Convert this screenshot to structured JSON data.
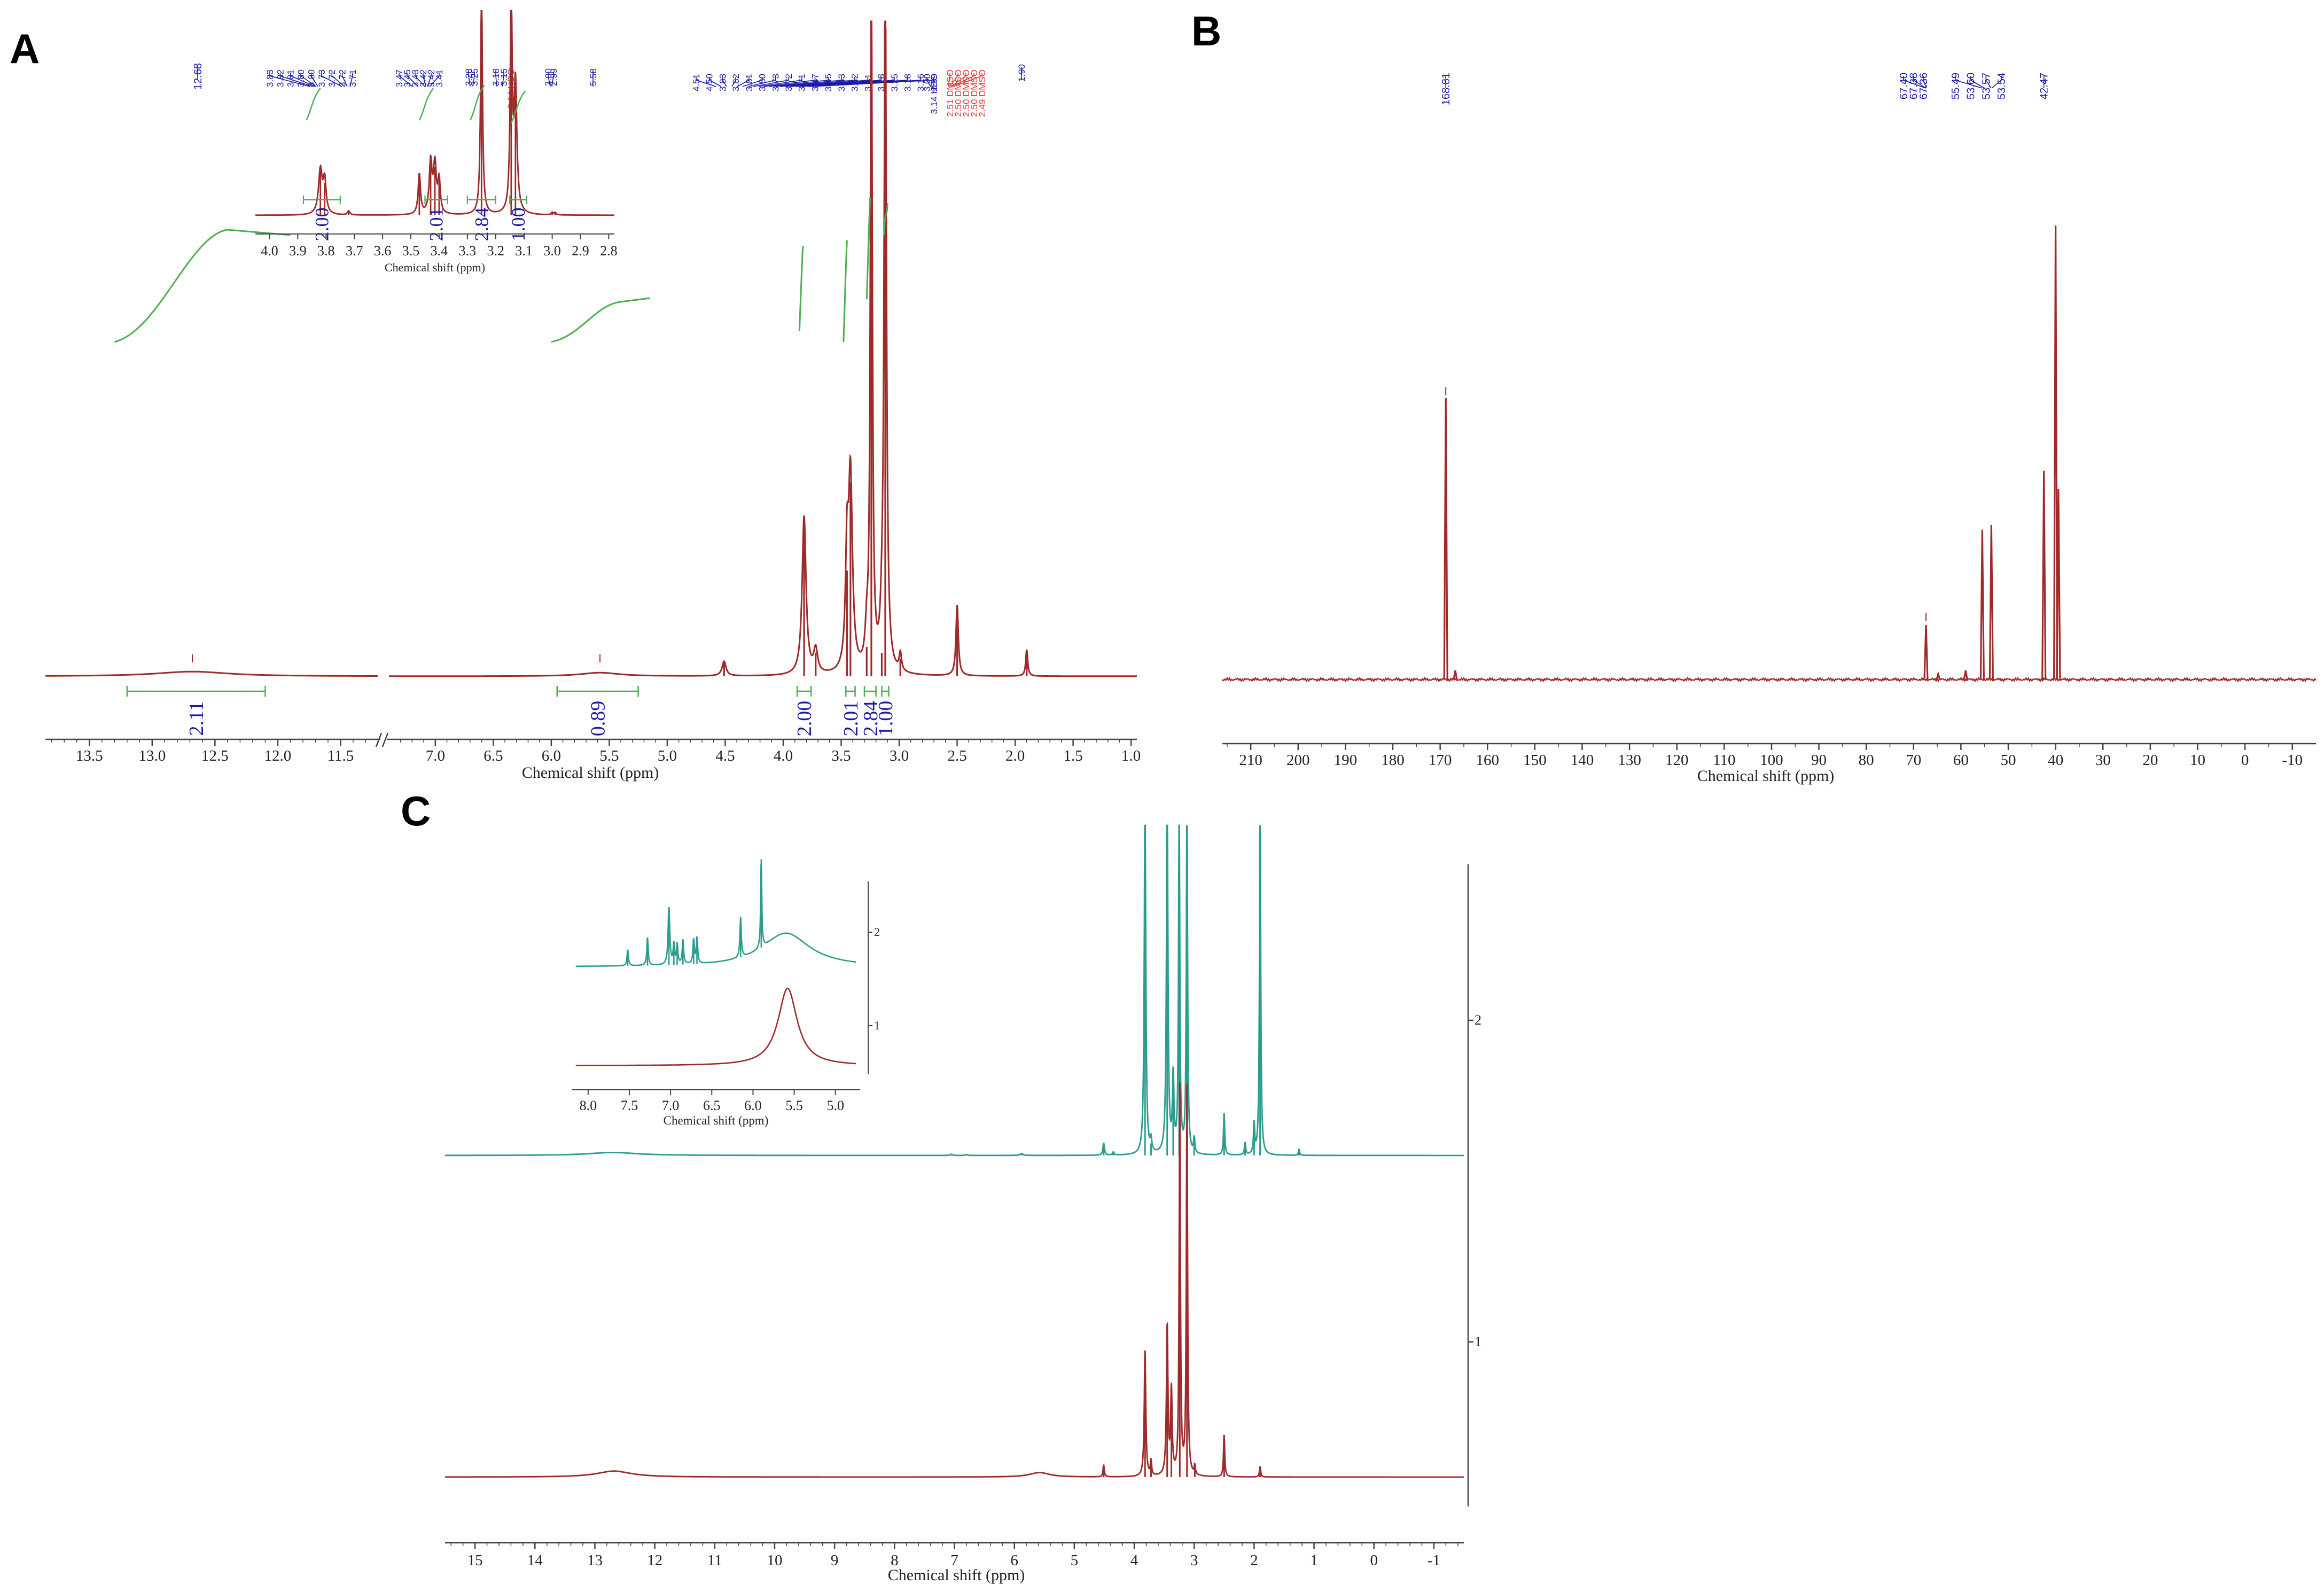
{
  "colors": {
    "spectrum_red": "#9e2a2b",
    "spectrum_teal": "#2a9d8f",
    "integral_green": "#4caf50",
    "label_blue": "#1a1aa6",
    "label_red": "#e53935",
    "axis": "#444444"
  },
  "panels": {
    "A": {
      "letter": "A"
    },
    "B": {
      "letter": "B"
    },
    "C": {
      "letter": "C"
    }
  },
  "chart_data": [
    {
      "panel": "A",
      "type": "line",
      "xlabel": "Chemical shift (ppm)",
      "x_reversed": true,
      "x_axis_break": [
        7.4,
        11.2
      ],
      "xlim": [
        14.0,
        1.0
      ],
      "x_ticks": [
        "13.5",
        "13.0",
        "12.5",
        "12.0",
        "11.5",
        "7.0",
        "6.5",
        "6.0",
        "5.5",
        "5.0",
        "4.5",
        "4.0",
        "3.5",
        "3.0",
        "2.5",
        "2.0",
        "1.5",
        "1.0"
      ],
      "peaks": [
        {
          "ppm": 12.68,
          "height": 0.008,
          "width": 0.35
        },
        {
          "ppm": 5.58,
          "height": 0.006,
          "width": 0.2
        },
        {
          "ppm": 4.51,
          "height": 0.025,
          "width": 0.02
        },
        {
          "ppm": 3.82,
          "height": 0.27,
          "width": 0.02
        },
        {
          "ppm": 3.72,
          "height": 0.04,
          "width": 0.02
        },
        {
          "ppm": 3.45,
          "height": 0.18,
          "width": 0.015
        },
        {
          "ppm": 3.42,
          "height": 0.33,
          "width": 0.02
        },
        {
          "ppm": 3.28,
          "height": 0.05,
          "width": 0.015
        },
        {
          "ppm": 3.24,
          "height": 1.2,
          "width": 0.01
        },
        {
          "ppm": 3.15,
          "height": 0.04,
          "width": 0.015
        },
        {
          "ppm": 3.12,
          "height": 1.2,
          "width": 0.012
        },
        {
          "ppm": 2.99,
          "height": 0.03,
          "width": 0.012
        },
        {
          "ppm": 2.5,
          "height": 0.12,
          "width": 0.012
        },
        {
          "ppm": 1.9,
          "height": 0.045,
          "width": 0.01
        }
      ],
      "integrals": [
        {
          "from": 13.2,
          "to": 12.1,
          "value": "2.11"
        },
        {
          "from": 5.95,
          "to": 5.25,
          "value": "0.89"
        },
        {
          "from": 3.88,
          "to": 3.76,
          "value": "2.00"
        },
        {
          "from": 3.46,
          "to": 3.38,
          "value": "2.01"
        },
        {
          "from": 3.3,
          "to": 3.2,
          "value": "2.84"
        },
        {
          "from": 3.15,
          "to": 3.09,
          "value": "1.00"
        }
      ],
      "peak_labels_blue_left": [
        "12.68"
      ],
      "peak_labels_blue_group1": [
        "3.83",
        "3.82",
        "3.81",
        "3.80",
        "3.80",
        "3.73",
        "3.72",
        "3.72",
        "3.71"
      ],
      "peak_labels_blue_group2": [
        "3.47",
        "3.45",
        "3.43",
        "3.42",
        "3.42",
        "3.41"
      ],
      "peak_labels_blue_group3": [
        "3.28",
        "3.25"
      ],
      "peak_labels_blue_group4": [
        "3.18",
        "3.15"
      ],
      "peak_labels_red_group1": [
        "3.14 HDO"
      ],
      "peak_labels_blue_group5": [
        "3.00",
        "2.99"
      ],
      "peak_labels_blue_group6": [
        "5.58"
      ],
      "peak_labels_blue_main": [
        "4.51",
        "4.50",
        "3.83",
        "3.82",
        "3.81",
        "3.80",
        "3.73",
        "3.72",
        "3.71",
        "3.47",
        "3.45",
        "3.43",
        "3.42",
        "3.41",
        "3.28",
        "3.25",
        "3.18",
        "3.16",
        "3.14 HDO"
      ],
      "peak_labels_blue_main2": [
        "3.00",
        "2.99"
      ],
      "peak_labels_red_main": [
        "2.51 DMSO",
        "2.50 DMSO",
        "2.50 DMSO",
        "2.50 DMSO",
        "2.49 DMSO"
      ],
      "peak_labels_blue_right": [
        "1.90"
      ],
      "inset": {
        "xlabel": "Chemical shift (ppm)",
        "xlim": [
          4.05,
          2.78
        ],
        "x_ticks": [
          "4.0",
          "3.9",
          "3.8",
          "3.7",
          "3.6",
          "3.5",
          "3.4",
          "3.3",
          "3.2",
          "3.1",
          "3.0",
          "2.9",
          "2.8"
        ],
        "integrals": [
          {
            "from": 3.88,
            "to": 3.75,
            "value": "2.00"
          },
          {
            "from": 3.45,
            "to": 3.37,
            "value": "2.01"
          },
          {
            "from": 3.3,
            "to": 3.2,
            "value": "2.84"
          },
          {
            "from": 3.15,
            "to": 3.09,
            "value": "1.00"
          }
        ]
      }
    },
    {
      "panel": "B",
      "type": "line",
      "xlabel": "Chemical shift (ppm)",
      "x_reversed": true,
      "xlim": [
        216,
        -15
      ],
      "x_ticks": [
        "210",
        "200",
        "190",
        "180",
        "170",
        "160",
        "150",
        "140",
        "130",
        "120",
        "110",
        "100",
        "90",
        "80",
        "70",
        "60",
        "50",
        "40",
        "30",
        "20",
        "10",
        "0",
        "-10"
      ],
      "peaks": [
        {
          "ppm": 168.81,
          "height": 0.62
        },
        {
          "ppm": 166.8,
          "height": 0.02
        },
        {
          "ppm": 67.38,
          "height": 0.12
        },
        {
          "ppm": 64.8,
          "height": 0.012
        },
        {
          "ppm": 59.0,
          "height": 0.02
        },
        {
          "ppm": 55.49,
          "height": 0.33
        },
        {
          "ppm": 53.57,
          "height": 0.34
        },
        {
          "ppm": 42.47,
          "height": 0.46
        },
        {
          "ppm": 40.0,
          "height": 1.0
        },
        {
          "ppm": 39.4,
          "height": 0.42
        }
      ],
      "peak_labels_left": [
        "168.81"
      ],
      "peak_labels_group1": [
        "67.40",
        "67.38",
        "67.36"
      ],
      "peak_labels_group2": [
        "55.49",
        "53.60",
        "53.57",
        "53.54"
      ],
      "peak_labels_right": [
        "42.47"
      ]
    },
    {
      "panel": "C",
      "type": "line",
      "xlabel": "Chemical shift (ppm)",
      "x_reversed": true,
      "xlim": [
        15.5,
        -1.5
      ],
      "x_ticks": [
        "15",
        "14",
        "13",
        "12",
        "11",
        "10",
        "9",
        "8",
        "7",
        "6",
        "5",
        "4",
        "3",
        "2",
        "1",
        "0",
        "-1"
      ],
      "y_ticks": [
        "2",
        "1"
      ],
      "series": [
        {
          "name": "2",
          "peaks": [
            {
              "ppm": 12.7,
              "height": 0.01,
              "width": 0.5
            },
            {
              "ppm": 7.05,
              "height": 0.004,
              "width": 0.02
            },
            {
              "ppm": 6.8,
              "height": 0.003,
              "width": 0.02
            },
            {
              "ppm": 5.88,
              "height": 0.006,
              "width": 0.03
            },
            {
              "ppm": 4.51,
              "height": 0.04,
              "width": 0.015
            },
            {
              "ppm": 4.35,
              "height": 0.01,
              "width": 0.015
            },
            {
              "ppm": 3.82,
              "height": 1.2,
              "width": 0.015
            },
            {
              "ppm": 3.72,
              "height": 0.04,
              "width": 0.015
            },
            {
              "ppm": 3.45,
              "height": 1.2,
              "width": 0.015
            },
            {
              "ppm": 3.35,
              "height": 0.25,
              "width": 0.015
            },
            {
              "ppm": 3.25,
              "height": 1.2,
              "width": 0.012
            },
            {
              "ppm": 3.12,
              "height": 1.2,
              "width": 0.012
            },
            {
              "ppm": 3.0,
              "height": 0.05,
              "width": 0.012
            },
            {
              "ppm": 2.5,
              "height": 0.14,
              "width": 0.012
            },
            {
              "ppm": 2.15,
              "height": 0.04,
              "width": 0.012
            },
            {
              "ppm": 2.0,
              "height": 0.1,
              "width": 0.012
            },
            {
              "ppm": 1.9,
              "height": 1.2,
              "width": 0.012
            },
            {
              "ppm": 1.25,
              "height": 0.02,
              "width": 0.012
            }
          ]
        },
        {
          "name": "1",
          "peaks": [
            {
              "ppm": 12.68,
              "height": 0.02,
              "width": 0.35
            },
            {
              "ppm": 5.58,
              "height": 0.015,
              "width": 0.2
            },
            {
              "ppm": 4.51,
              "height": 0.04,
              "width": 0.012
            },
            {
              "ppm": 3.82,
              "height": 0.42,
              "width": 0.015
            },
            {
              "ppm": 3.72,
              "height": 0.05,
              "width": 0.012
            },
            {
              "ppm": 3.45,
              "height": 0.5,
              "width": 0.015
            },
            {
              "ppm": 3.38,
              "height": 0.28,
              "width": 0.015
            },
            {
              "ppm": 3.24,
              "height": 1.3,
              "width": 0.012
            },
            {
              "ppm": 3.12,
              "height": 1.3,
              "width": 0.012
            },
            {
              "ppm": 2.99,
              "height": 0.03,
              "width": 0.012
            },
            {
              "ppm": 2.5,
              "height": 0.14,
              "width": 0.012
            },
            {
              "ppm": 1.9,
              "height": 0.035,
              "width": 0.012
            }
          ]
        }
      ],
      "inset": {
        "xlabel": "Chemical shift (ppm)",
        "xlim": [
          8.2,
          4.7
        ],
        "x_ticks": [
          "8.0",
          "7.5",
          "7.0",
          "6.5",
          "6.0",
          "5.5",
          "5.0"
        ],
        "y_ticks": [
          "2",
          "1"
        ]
      }
    }
  ]
}
